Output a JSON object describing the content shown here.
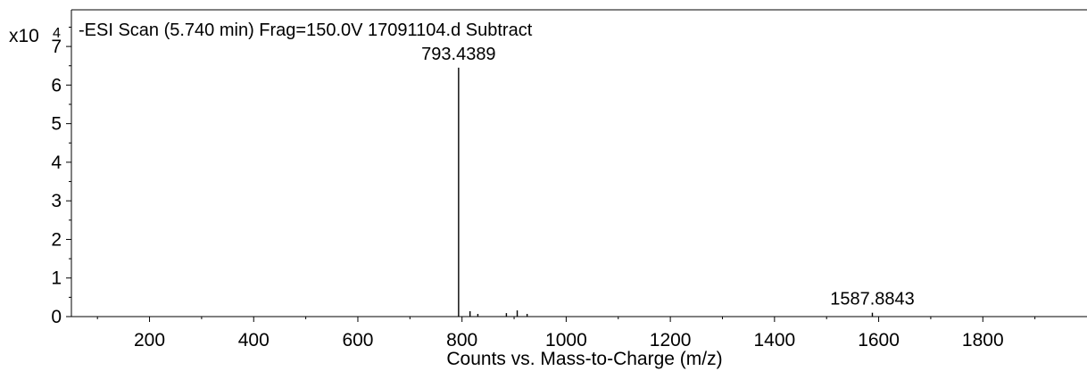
{
  "chart_data": {
    "type": "bar",
    "title": "-ESI Scan (5.740 min) Frag=150.0V 17091104.d  Subtract",
    "xlabel": "Counts vs. Mass-to-Charge (m/z)",
    "ylabel": "",
    "y_multiplier": "x10",
    "y_exponent": "4",
    "xlim": [
      50,
      2000
    ],
    "ylim": [
      0,
      7.95
    ],
    "xticks": [
      200,
      400,
      600,
      800,
      1000,
      1200,
      1400,
      1600,
      1800
    ],
    "yticks": [
      0,
      1,
      2,
      3,
      4,
      5,
      6,
      7
    ],
    "peaks": [
      {
        "x": 793.4389,
        "y": 6.45,
        "label": "793.4389"
      },
      {
        "x": 815.4,
        "y": 0.14,
        "label": ""
      },
      {
        "x": 830.4,
        "y": 0.07,
        "label": ""
      },
      {
        "x": 885.2,
        "y": 0.09,
        "label": ""
      },
      {
        "x": 906.0,
        "y": 0.16,
        "label": ""
      },
      {
        "x": 925.0,
        "y": 0.07,
        "label": ""
      },
      {
        "x": 1587.8843,
        "y": 0.1,
        "label": "1587.8843"
      }
    ],
    "grid": false,
    "line_color": "#000000"
  }
}
